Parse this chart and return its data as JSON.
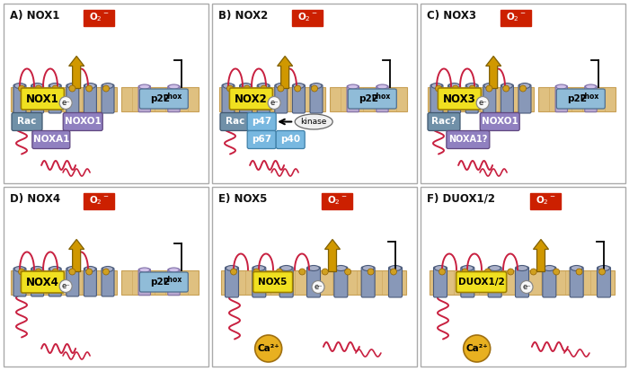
{
  "panels": [
    {
      "label": "A) NOX1",
      "col": 0,
      "row": 0,
      "nox": "NOX1",
      "has_p22": true,
      "has_rac": true,
      "rac_label": "Rac",
      "has_noxa1": true,
      "noxa1_label": "NOXA1",
      "has_noxo1": true,
      "noxo1_label": "NOXO1",
      "has_p47": false,
      "has_p67": false,
      "has_p40": false,
      "has_kinase": false,
      "has_ca2": false,
      "wide_mem": false
    },
    {
      "label": "B) NOX2",
      "col": 1,
      "row": 0,
      "nox": "NOX2",
      "has_p22": true,
      "has_rac": true,
      "rac_label": "Rac",
      "has_noxa1": false,
      "noxa1_label": "",
      "has_noxo1": false,
      "noxo1_label": "",
      "has_p47": true,
      "has_p67": true,
      "has_p40": true,
      "has_kinase": true,
      "has_ca2": false,
      "wide_mem": false
    },
    {
      "label": "C) NOX3",
      "col": 2,
      "row": 0,
      "nox": "NOX3",
      "has_p22": true,
      "has_rac": true,
      "rac_label": "Rac?",
      "has_noxa1": true,
      "noxa1_label": "NOXA1?",
      "has_noxo1": true,
      "noxo1_label": "NOXO1",
      "has_p47": false,
      "has_p67": false,
      "has_p40": false,
      "has_kinase": false,
      "has_ca2": false,
      "wide_mem": false
    },
    {
      "label": "D) NOX4",
      "col": 0,
      "row": 1,
      "nox": "NOX4",
      "has_p22": true,
      "has_rac": false,
      "rac_label": "",
      "has_noxa1": false,
      "noxa1_label": "",
      "has_noxo1": false,
      "noxo1_label": "",
      "has_p47": false,
      "has_p67": false,
      "has_p40": false,
      "has_kinase": false,
      "has_ca2": false,
      "wide_mem": false
    },
    {
      "label": "E) NOX5",
      "col": 1,
      "row": 1,
      "nox": "NOX5",
      "has_p22": false,
      "has_rac": false,
      "rac_label": "",
      "has_noxa1": false,
      "noxa1_label": "",
      "has_noxo1": false,
      "noxo1_label": "",
      "has_p47": false,
      "has_p67": false,
      "has_p40": false,
      "has_kinase": false,
      "has_ca2": true,
      "wide_mem": true
    },
    {
      "label": "F) DUOX1/2",
      "col": 2,
      "row": 1,
      "nox": "DUOX1/2",
      "has_p22": false,
      "has_rac": false,
      "rac_label": "",
      "has_noxa1": false,
      "noxa1_label": "",
      "has_noxo1": false,
      "noxo1_label": "",
      "has_p47": false,
      "has_p67": false,
      "has_p40": false,
      "has_kinase": false,
      "has_ca2": true,
      "wide_mem": true
    }
  ],
  "c": {
    "bg": "#ffffff",
    "mem_tan": "#dfc080",
    "mem_dark": "#c8a055",
    "cyl_gray": "#8898b8",
    "cyl_edge": "#4a5a7a",
    "cyl_top": "#aab0c8",
    "cyl_purp": "#b8a8d0",
    "cyl_purp_edge": "#8070a8",
    "nox_yel": "#f0e020",
    "nox_yel_edge": "#a08000",
    "rac_blue": "#7090a8",
    "rac_edge": "#405870",
    "p22_blue": "#90bcd8",
    "p22_edge": "#507090",
    "noxa_purp": "#9080c0",
    "noxa_edge": "#604880",
    "noxo_purp": "#9080c0",
    "noxo_edge": "#604880",
    "p_blue": "#78b8e0",
    "p_edge": "#4080a8",
    "arr_gold": "#d09800",
    "arr_edge": "#806000",
    "o2_red": "#cc2000",
    "coil_red": "#c82040",
    "dot_gold": "#d0a020",
    "dot_edge": "#906000",
    "elec_bg": "#f8f8f8",
    "ca_gold": "#e8b020",
    "ca_edge": "#a07010",
    "kinase_bg": "#f0f0f0",
    "panel_line": "#aaaaaa",
    "black": "#000000",
    "white": "#ffffff",
    "text_dark": "#111111"
  }
}
